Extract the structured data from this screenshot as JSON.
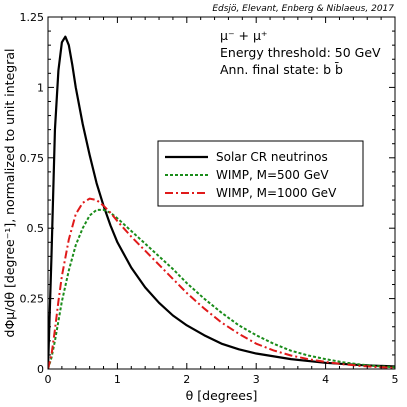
{
  "chart_data": {
    "type": "line",
    "title": "",
    "credit": "Edsjö, Elevant, Enberg & Niblaeus, 2017",
    "xlabel": "θ [degrees]",
    "ylabel": "dΦμ/dθ [degree⁻¹], normalized to unit integral",
    "xlim": [
      0,
      5
    ],
    "ylim": [
      0,
      1.25
    ],
    "x_ticks": [
      0,
      1,
      2,
      3,
      4,
      5
    ],
    "x_tick_labels": [
      "0",
      "1",
      "2",
      "3",
      "4",
      "5"
    ],
    "y_ticks": [
      0,
      0.25,
      0.5,
      0.75,
      1,
      1.25
    ],
    "y_tick_labels": [
      "0",
      "0.25",
      "0.5",
      "0.75",
      "1",
      "1.25"
    ],
    "grid": false,
    "legend_position": "center-right",
    "annotations": [
      "μ⁻ + μ⁺",
      "Energy threshold: 50 GeV",
      "Ann. final state: b b̄"
    ],
    "series": [
      {
        "name": "Solar CR neutrinos",
        "color": "#000000",
        "dash": "solid",
        "x": [
          0.0,
          0.05,
          0.1,
          0.15,
          0.2,
          0.25,
          0.3,
          0.35,
          0.4,
          0.5,
          0.6,
          0.7,
          0.8,
          0.9,
          1.0,
          1.2,
          1.4,
          1.6,
          1.8,
          2.0,
          2.25,
          2.5,
          2.75,
          3.0,
          3.5,
          4.0,
          4.5,
          5.0
        ],
        "y": [
          0.0,
          0.4,
          0.85,
          1.06,
          1.16,
          1.18,
          1.15,
          1.08,
          1.0,
          0.87,
          0.76,
          0.66,
          0.58,
          0.51,
          0.45,
          0.36,
          0.29,
          0.235,
          0.19,
          0.155,
          0.12,
          0.09,
          0.07,
          0.055,
          0.035,
          0.022,
          0.014,
          0.009
        ]
      },
      {
        "name": "WIMP, M=500 GeV",
        "color": "#1a8c1a",
        "dash": "dotted",
        "x": [
          0.0,
          0.05,
          0.1,
          0.15,
          0.2,
          0.3,
          0.4,
          0.5,
          0.6,
          0.7,
          0.8,
          0.9,
          1.0,
          1.2,
          1.4,
          1.6,
          1.8,
          2.0,
          2.25,
          2.5,
          2.75,
          3.0,
          3.25,
          3.5,
          3.75,
          4.0,
          4.25,
          4.5,
          4.75,
          5.0
        ],
        "y": [
          0.0,
          0.04,
          0.1,
          0.17,
          0.24,
          0.35,
          0.44,
          0.5,
          0.545,
          0.565,
          0.565,
          0.555,
          0.535,
          0.49,
          0.445,
          0.4,
          0.355,
          0.305,
          0.25,
          0.2,
          0.155,
          0.12,
          0.09,
          0.065,
          0.048,
          0.035,
          0.024,
          0.016,
          0.01,
          0.006
        ]
      },
      {
        "name": "WIMP, M=1000 GeV",
        "color": "#e01a1a",
        "dash": "dashdot",
        "x": [
          0.0,
          0.05,
          0.1,
          0.15,
          0.2,
          0.3,
          0.4,
          0.5,
          0.6,
          0.7,
          0.8,
          0.9,
          1.0,
          1.2,
          1.4,
          1.6,
          1.8,
          2.0,
          2.25,
          2.5,
          2.75,
          3.0,
          3.25,
          3.5,
          3.75,
          4.0,
          4.25,
          4.5,
          4.75,
          5.0
        ],
        "y": [
          0.0,
          0.05,
          0.14,
          0.24,
          0.33,
          0.46,
          0.55,
          0.59,
          0.605,
          0.6,
          0.58,
          0.555,
          0.525,
          0.47,
          0.42,
          0.37,
          0.32,
          0.27,
          0.215,
          0.165,
          0.125,
          0.09,
          0.066,
          0.048,
          0.035,
          0.025,
          0.017,
          0.011,
          0.007,
          0.004
        ]
      }
    ]
  }
}
